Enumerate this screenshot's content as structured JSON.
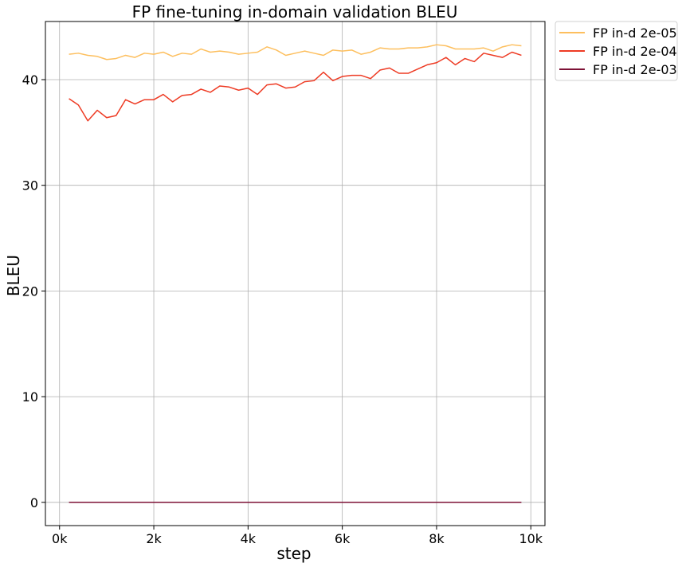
{
  "chart_data": {
    "type": "line",
    "title": "FP fine-tuning in-domain validation BLEU",
    "xlabel": "step",
    "ylabel": "BLEU",
    "xlim": [
      -300,
      10300
    ],
    "ylim": [
      -2.2,
      45.5
    ],
    "x_ticks": [
      0,
      2000,
      4000,
      6000,
      8000,
      10000
    ],
    "x_tick_labels": [
      "0k",
      "2k",
      "4k",
      "6k",
      "8k",
      "10k"
    ],
    "y_ticks": [
      0,
      10,
      20,
      30,
      40
    ],
    "y_tick_labels": [
      "0",
      "10",
      "20",
      "30",
      "40"
    ],
    "grid": true,
    "legend_position": "outside-top-right",
    "x": [
      200,
      400,
      600,
      800,
      1000,
      1200,
      1400,
      1600,
      1800,
      2000,
      2200,
      2400,
      2600,
      2800,
      3000,
      3200,
      3400,
      3600,
      3800,
      4000,
      4200,
      4400,
      4600,
      4800,
      5000,
      5200,
      5400,
      5600,
      5800,
      6000,
      6200,
      6400,
      6600,
      6800,
      7000,
      7200,
      7400,
      7600,
      7800,
      8000,
      8200,
      8400,
      8600,
      8800,
      9000,
      9200,
      9400,
      9600,
      9800
    ],
    "series": [
      {
        "name": "FP in-d 2e-05",
        "color": "#fdbf5e",
        "values": [
          42.4,
          42.5,
          42.3,
          42.2,
          41.9,
          42.0,
          42.3,
          42.1,
          42.5,
          42.4,
          42.6,
          42.2,
          42.5,
          42.4,
          42.9,
          42.6,
          42.7,
          42.6,
          42.4,
          42.5,
          42.6,
          43.1,
          42.8,
          42.3,
          42.5,
          42.7,
          42.5,
          42.3,
          42.8,
          42.7,
          42.8,
          42.4,
          42.6,
          43.0,
          42.9,
          42.9,
          43.0,
          43.0,
          43.1,
          43.3,
          43.2,
          42.9,
          42.9,
          42.9,
          43.0,
          42.7,
          43.1,
          43.3,
          43.2
        ]
      },
      {
        "name": "FP in-d 2e-04",
        "color": "#ee3b24",
        "values": [
          38.2,
          37.6,
          36.1,
          37.1,
          36.4,
          36.6,
          38.1,
          37.7,
          38.1,
          38.1,
          38.6,
          37.9,
          38.5,
          38.6,
          39.1,
          38.8,
          39.4,
          39.3,
          39.0,
          39.2,
          38.6,
          39.5,
          39.6,
          39.2,
          39.3,
          39.8,
          39.9,
          40.7,
          39.9,
          40.3,
          40.4,
          40.4,
          40.1,
          40.9,
          41.1,
          40.6,
          40.6,
          41.0,
          41.4,
          41.6,
          42.1,
          41.4,
          42.0,
          41.7,
          42.5,
          42.3,
          42.1,
          42.6,
          42.3
        ]
      },
      {
        "name": "FP in-d 2e-03",
        "color": "#7d1236",
        "values": [
          0.0,
          0.0,
          0.0,
          0.0,
          0.0,
          0.0,
          0.0,
          0.0,
          0.0,
          0.0,
          0.0,
          0.0,
          0.0,
          0.0,
          0.0,
          0.0,
          0.0,
          0.0,
          0.0,
          0.0,
          0.0,
          0.0,
          0.0,
          0.0,
          0.0,
          0.0,
          0.0,
          0.0,
          0.0,
          0.0,
          0.0,
          0.0,
          0.0,
          0.0,
          0.0,
          0.0,
          0.0,
          0.0,
          0.0,
          0.0,
          0.0,
          0.0,
          0.0,
          0.0,
          0.0,
          0.0,
          0.0,
          0.0,
          0.0
        ]
      }
    ]
  }
}
